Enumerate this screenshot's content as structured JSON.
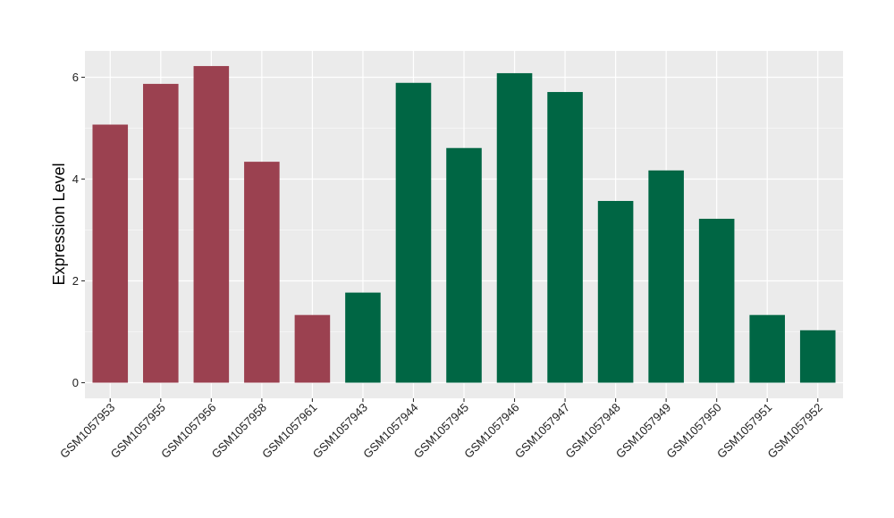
{
  "chart_data": {
    "type": "bar",
    "title": "",
    "xlabel": "",
    "ylabel": "Expression Level",
    "ylim": [
      0,
      6.5
    ],
    "yticks": [
      0,
      2,
      4,
      6
    ],
    "grid": true,
    "legend": "none",
    "categories": [
      "GSM1057953",
      "GSM1057955",
      "GSM1057956",
      "GSM1057958",
      "GSM1057961",
      "GSM1057943",
      "GSM1057944",
      "GSM1057945",
      "GSM1057946",
      "GSM1057947",
      "GSM1057948",
      "GSM1057949",
      "GSM1057950",
      "GSM1057951",
      "GSM1057952"
    ],
    "values": [
      5.07,
      5.87,
      6.22,
      4.34,
      1.33,
      1.77,
      5.89,
      4.61,
      6.08,
      5.71,
      3.57,
      4.17,
      3.22,
      1.33,
      1.03
    ],
    "bar_colors": [
      "#9b4150",
      "#9b4150",
      "#9b4150",
      "#9b4150",
      "#9b4150",
      "#006644",
      "#006644",
      "#006644",
      "#006644",
      "#006644",
      "#006644",
      "#006644",
      "#006644",
      "#006644",
      "#006644"
    ],
    "panel_color": "#ebebeb",
    "grid_color": "#ffffff"
  }
}
